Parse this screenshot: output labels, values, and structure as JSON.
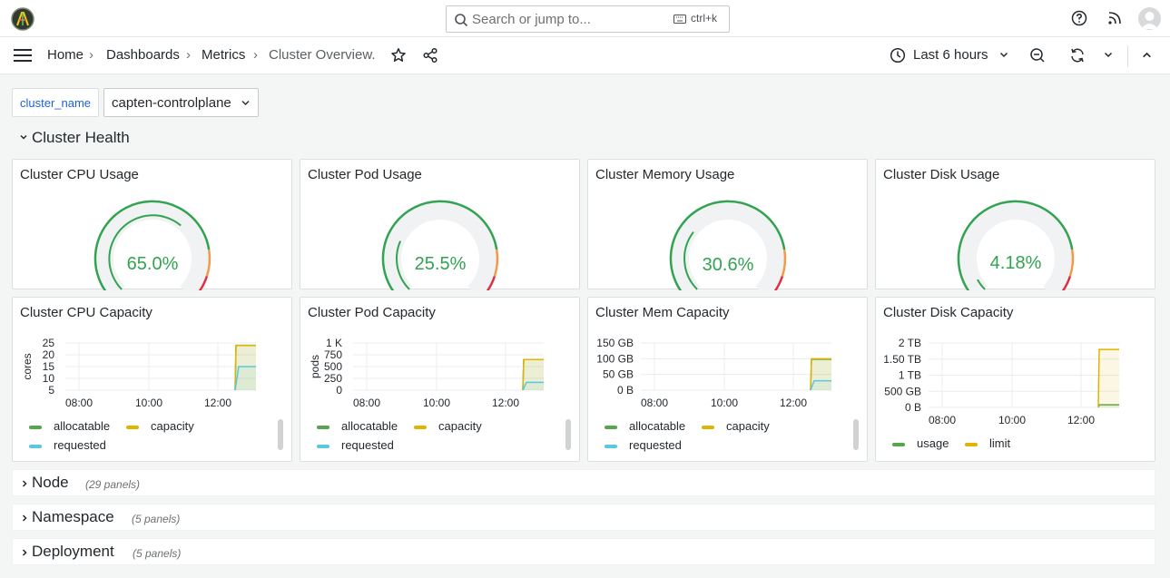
{
  "search": {
    "placeholder": "Search or jump to...",
    "shortcut": "ctrl+k"
  },
  "breadcrumb": {
    "home": "Home",
    "dashboards": "Dashboards",
    "metrics": "Metrics",
    "current": "Cluster Overview."
  },
  "time_range": "Last 6 hours",
  "variable": {
    "name": "cluster_name",
    "value": "capten-controlplane"
  },
  "rows": {
    "health": {
      "title": "Cluster Health"
    },
    "node": {
      "title": "Node",
      "count": "(29 panels)"
    },
    "namespace": {
      "title": "Namespace",
      "count": "(5 panels)"
    },
    "deployment": {
      "title": "Deployment",
      "count": "(5 panels)"
    }
  },
  "gauges": [
    {
      "title": "Cluster CPU Usage",
      "value": "65.0%",
      "fraction": 0.65
    },
    {
      "title": "Cluster Pod Usage",
      "value": "25.5%",
      "fraction": 0.255
    },
    {
      "title": "Cluster Memory Usage",
      "value": "30.6%",
      "fraction": 0.306
    },
    {
      "title": "Cluster Disk Usage",
      "value": "4.18%",
      "fraction": 0.0418
    }
  ],
  "colors": {
    "green": "#56a64b",
    "yellow": "#e0b400",
    "cyan": "#5ac8dc",
    "gauge_green": "#32a350",
    "gauge_orange": "#f2994a",
    "gauge_red": "#e02f44"
  },
  "chart_data": [
    {
      "type": "line",
      "title": "Cluster CPU Capacity",
      "ylabel": "cores",
      "y_ticks": [
        "25",
        "20",
        "15",
        "10",
        "5"
      ],
      "x_ticks": [
        "08:00",
        "10:00",
        "12:00"
      ],
      "ylim": [
        5,
        25
      ],
      "series": [
        {
          "name": "allocatable",
          "color": "#56a64b",
          "value": 24
        },
        {
          "name": "capacity",
          "color": "#e0b400",
          "value": 24
        },
        {
          "name": "requested",
          "color": "#5ac8dc",
          "value": 15
        }
      ]
    },
    {
      "type": "line",
      "title": "Cluster Pod Capacity",
      "ylabel": "pods",
      "y_ticks": [
        "1 K",
        "750",
        "500",
        "250",
        "0"
      ],
      "x_ticks": [
        "08:00",
        "10:00",
        "12:00"
      ],
      "ylim": [
        0,
        1000
      ],
      "series": [
        {
          "name": "allocatable",
          "color": "#56a64b",
          "value": 650
        },
        {
          "name": "capacity",
          "color": "#e0b400",
          "value": 650
        },
        {
          "name": "requested",
          "color": "#5ac8dc",
          "value": 166
        }
      ]
    },
    {
      "type": "line",
      "title": "Cluster Mem Capacity",
      "ylabel": "",
      "y_ticks": [
        "150 GB",
        "100 GB",
        "50 GB",
        "0 B"
      ],
      "x_ticks": [
        "08:00",
        "10:00",
        "12:00"
      ],
      "ylim": [
        0,
        150
      ],
      "series": [
        {
          "name": "allocatable",
          "color": "#56a64b",
          "value": 98
        },
        {
          "name": "capacity",
          "color": "#e0b400",
          "value": 100
        },
        {
          "name": "requested",
          "color": "#5ac8dc",
          "value": 30
        }
      ]
    },
    {
      "type": "line",
      "title": "Cluster Disk Capacity",
      "ylabel": "",
      "y_ticks": [
        "2 TB",
        "1.50 TB",
        "1 TB",
        "500 GB",
        "0 B"
      ],
      "x_ticks": [
        "08:00",
        "10:00",
        "12:00"
      ],
      "ylim": [
        0,
        2
      ],
      "series": [
        {
          "name": "usage",
          "color": "#56a64b",
          "value": 0.08
        },
        {
          "name": "limit",
          "color": "#e0b400",
          "value": 1.8
        }
      ]
    }
  ]
}
